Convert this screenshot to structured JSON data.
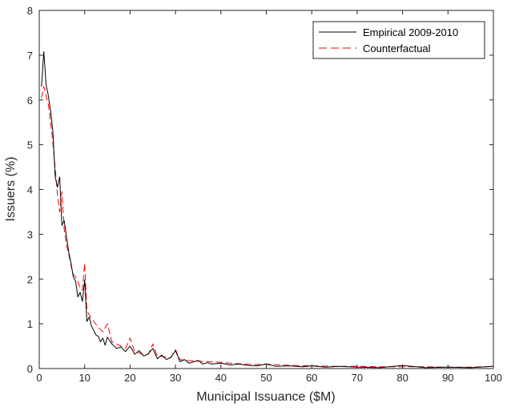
{
  "chart_data": {
    "type": "line",
    "title": "",
    "xlabel": "Municipal Issuance ($M)",
    "ylabel": "Issuers (%)",
    "xlim": [
      0,
      100
    ],
    "ylim": [
      0,
      8
    ],
    "xticks": [
      0,
      10,
      20,
      30,
      40,
      50,
      60,
      70,
      80,
      90,
      100
    ],
    "yticks": [
      0,
      1,
      2,
      3,
      4,
      5,
      6,
      7,
      8
    ],
    "grid": false,
    "legend_position": "top-right",
    "series": [
      {
        "name": "Empirical 2009-2010",
        "color": "#000000",
        "style": "solid",
        "x": [
          0.5,
          1.0,
          1.5,
          2.0,
          2.5,
          3.0,
          3.5,
          4.0,
          4.5,
          5.0,
          5.5,
          6.0,
          6.5,
          7.0,
          7.5,
          8.0,
          8.5,
          9.0,
          9.5,
          10.0,
          10.5,
          11.0,
          11.5,
          12.0,
          12.5,
          13.0,
          13.5,
          14.0,
          14.5,
          15.0,
          16.0,
          17.0,
          18.0,
          19.0,
          20.0,
          21.0,
          22.0,
          23.0,
          24.0,
          25.0,
          26.0,
          27.0,
          28.0,
          29.0,
          30.0,
          31.0,
          32.0,
          33.0,
          34.0,
          35.0,
          36.0,
          37.0,
          38.0,
          40.0,
          42.0,
          44.0,
          46.0,
          48.0,
          50.0,
          52.0,
          55.0,
          58.0,
          60.0,
          63.0,
          66.0,
          70.0,
          75.0,
          80.0,
          85.0,
          90.0,
          95.0,
          100.0
        ],
        "y": [
          6.3,
          7.08,
          6.35,
          6.1,
          5.75,
          5.3,
          4.3,
          4.05,
          4.28,
          3.2,
          3.3,
          2.95,
          2.6,
          2.35,
          2.05,
          1.95,
          1.6,
          1.7,
          1.5,
          1.98,
          1.05,
          1.15,
          0.95,
          0.85,
          0.75,
          0.72,
          0.6,
          0.68,
          0.52,
          0.7,
          0.55,
          0.45,
          0.48,
          0.38,
          0.5,
          0.32,
          0.4,
          0.28,
          0.33,
          0.45,
          0.22,
          0.3,
          0.2,
          0.25,
          0.4,
          0.15,
          0.2,
          0.12,
          0.15,
          0.18,
          0.1,
          0.13,
          0.1,
          0.12,
          0.08,
          0.1,
          0.07,
          0.06,
          0.1,
          0.05,
          0.06,
          0.04,
          0.06,
          0.03,
          0.05,
          0.03,
          0.02,
          0.07,
          0.02,
          0.03,
          0.02,
          0.05
        ]
      },
      {
        "name": "Counterfactual",
        "color": "#ff0000",
        "style": "dashed",
        "x": [
          0.5,
          1.0,
          1.5,
          2.0,
          2.5,
          3.0,
          3.5,
          4.0,
          4.5,
          5.0,
          5.5,
          6.0,
          6.5,
          7.0,
          7.5,
          8.0,
          8.5,
          9.0,
          9.5,
          10.0,
          10.5,
          11.0,
          12.0,
          13.0,
          14.0,
          15.0,
          16.0,
          17.0,
          18.0,
          19.0,
          20.0,
          21.0,
          22.0,
          23.0,
          24.0,
          25.0,
          26.0,
          27.0,
          28.0,
          29.0,
          30.0,
          31.0,
          32.0,
          34.0,
          36.0,
          38.0,
          40.0,
          42.0,
          45.0,
          48.0,
          50.0,
          55.0,
          60.0,
          65.0,
          70.0,
          75.0,
          80.0,
          85.0,
          90.0,
          95.0,
          100.0
        ],
        "y": [
          6.05,
          6.3,
          6.1,
          5.9,
          5.5,
          5.05,
          4.5,
          3.9,
          3.5,
          3.95,
          3.1,
          2.75,
          2.55,
          2.3,
          2.1,
          2.05,
          1.95,
          1.8,
          1.75,
          2.35,
          1.3,
          1.2,
          1.05,
          0.92,
          0.82,
          1.0,
          0.6,
          0.55,
          0.5,
          0.45,
          0.68,
          0.38,
          0.35,
          0.3,
          0.32,
          0.55,
          0.28,
          0.27,
          0.25,
          0.24,
          0.42,
          0.2,
          0.19,
          0.17,
          0.16,
          0.15,
          0.14,
          0.12,
          0.1,
          0.09,
          0.1,
          0.07,
          0.06,
          0.05,
          0.05,
          0.04,
          0.04,
          0.04,
          0.03,
          0.03,
          0.05
        ]
      }
    ]
  }
}
